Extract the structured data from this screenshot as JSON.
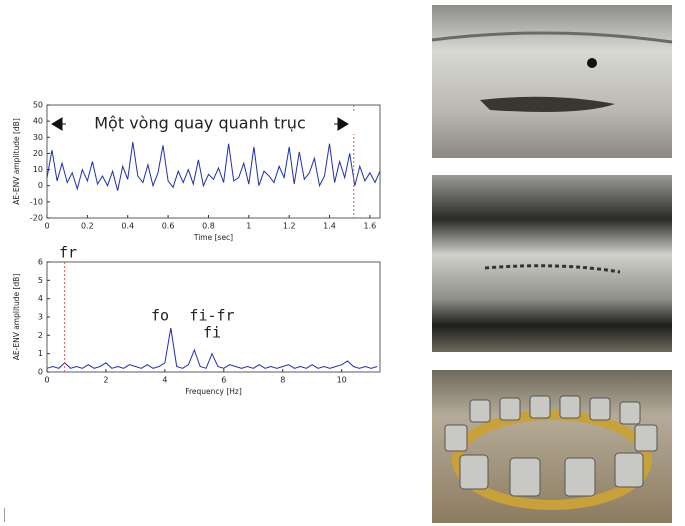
{
  "chart_data": [
    {
      "type": "line",
      "x_label": "Time [sec]",
      "y_label": "AE-ENV amplitude [dB]",
      "annotation": "Một vòng quay quanh trục",
      "x": [
        0,
        0.025,
        0.05,
        0.075,
        0.1,
        0.125,
        0.15,
        0.175,
        0.2,
        0.225,
        0.25,
        0.275,
        0.3,
        0.325,
        0.35,
        0.375,
        0.4,
        0.425,
        0.45,
        0.475,
        0.5,
        0.525,
        0.55,
        0.575,
        0.6,
        0.625,
        0.65,
        0.675,
        0.7,
        0.725,
        0.75,
        0.775,
        0.8,
        0.825,
        0.85,
        0.875,
        0.9,
        0.925,
        0.95,
        0.975,
        1,
        1.025,
        1.05,
        1.075,
        1.1,
        1.125,
        1.15,
        1.175,
        1.2,
        1.225,
        1.25,
        1.275,
        1.3,
        1.325,
        1.35,
        1.375,
        1.4,
        1.425,
        1.45,
        1.475,
        1.5,
        1.525,
        1.55,
        1.575,
        1.6,
        1.625,
        1.65
      ],
      "values": [
        5,
        22,
        3,
        14,
        2,
        8,
        -2,
        10,
        3,
        15,
        1,
        6,
        0,
        9,
        -3,
        12,
        4,
        27,
        6,
        2,
        13,
        0,
        8,
        25,
        3,
        -1,
        9,
        2,
        10,
        1,
        16,
        0,
        7,
        4,
        11,
        2,
        26,
        3,
        5,
        14,
        1,
        24,
        0,
        9,
        6,
        2,
        12,
        5,
        24,
        1,
        21,
        4,
        8,
        17,
        0,
        6,
        26,
        2,
        15,
        5,
        20,
        0,
        12,
        3,
        8,
        2,
        9
      ],
      "color": "#1f2fb0",
      "xlim": [
        0,
        1.65
      ],
      "xticks": [
        0,
        0.2,
        0.4,
        0.6,
        0.8,
        1,
        1.2,
        1.4,
        1.6
      ],
      "ylim": [
        -20,
        50
      ],
      "yticks": [
        -20,
        -10,
        0,
        10,
        20,
        30,
        40,
        50
      ],
      "reference_line": {
        "x": 1.52,
        "color": "#e05a4a"
      }
    },
    {
      "type": "line",
      "x_label": "Frequency [Hz]",
      "y_label": "AE-ENV amplitude [dB]",
      "annotations": [
        "fr",
        "fo",
        "fi-fr",
        "fi"
      ],
      "x": [
        0,
        0.2,
        0.4,
        0.6,
        0.8,
        1,
        1.2,
        1.4,
        1.6,
        1.8,
        2,
        2.2,
        2.4,
        2.6,
        2.8,
        3,
        3.2,
        3.4,
        3.6,
        3.8,
        4,
        4.2,
        4.4,
        4.6,
        4.8,
        5,
        5.2,
        5.4,
        5.6,
        5.8,
        6,
        6.2,
        6.4,
        6.6,
        6.8,
        7,
        7.2,
        7.4,
        7.6,
        7.8,
        8,
        8.2,
        8.4,
        8.6,
        8.8,
        9,
        9.2,
        9.4,
        9.6,
        9.8,
        10,
        10.2,
        10.4,
        10.6,
        10.8,
        11,
        11.2
      ],
      "values": [
        0.2,
        0.3,
        0.2,
        0.5,
        0.2,
        0.3,
        0.2,
        0.4,
        0.2,
        0.3,
        0.5,
        0.2,
        0.3,
        0.2,
        0.4,
        0.3,
        0.2,
        0.4,
        0.2,
        0.3,
        0.5,
        2.4,
        0.3,
        0.2,
        0.4,
        1.2,
        0.3,
        0.2,
        1.0,
        0.3,
        0.2,
        0.4,
        0.3,
        0.2,
        0.3,
        0.2,
        0.4,
        0.2,
        0.3,
        0.2,
        0.3,
        0.4,
        0.2,
        0.3,
        0.2,
        0.4,
        0.2,
        0.3,
        0.2,
        0.3,
        0.4,
        0.6,
        0.3,
        0.2,
        0.3,
        0.2,
        0.3
      ],
      "color": "#1f2fb0",
      "xlim": [
        0,
        11.3
      ],
      "xticks": [
        0,
        2,
        4,
        6,
        8,
        10
      ],
      "ylim": [
        0,
        6
      ],
      "yticks": [
        0,
        1,
        2,
        3,
        4,
        5,
        6
      ],
      "reference_line": {
        "x": 0.6,
        "color": "#e05a4a"
      }
    }
  ]
}
